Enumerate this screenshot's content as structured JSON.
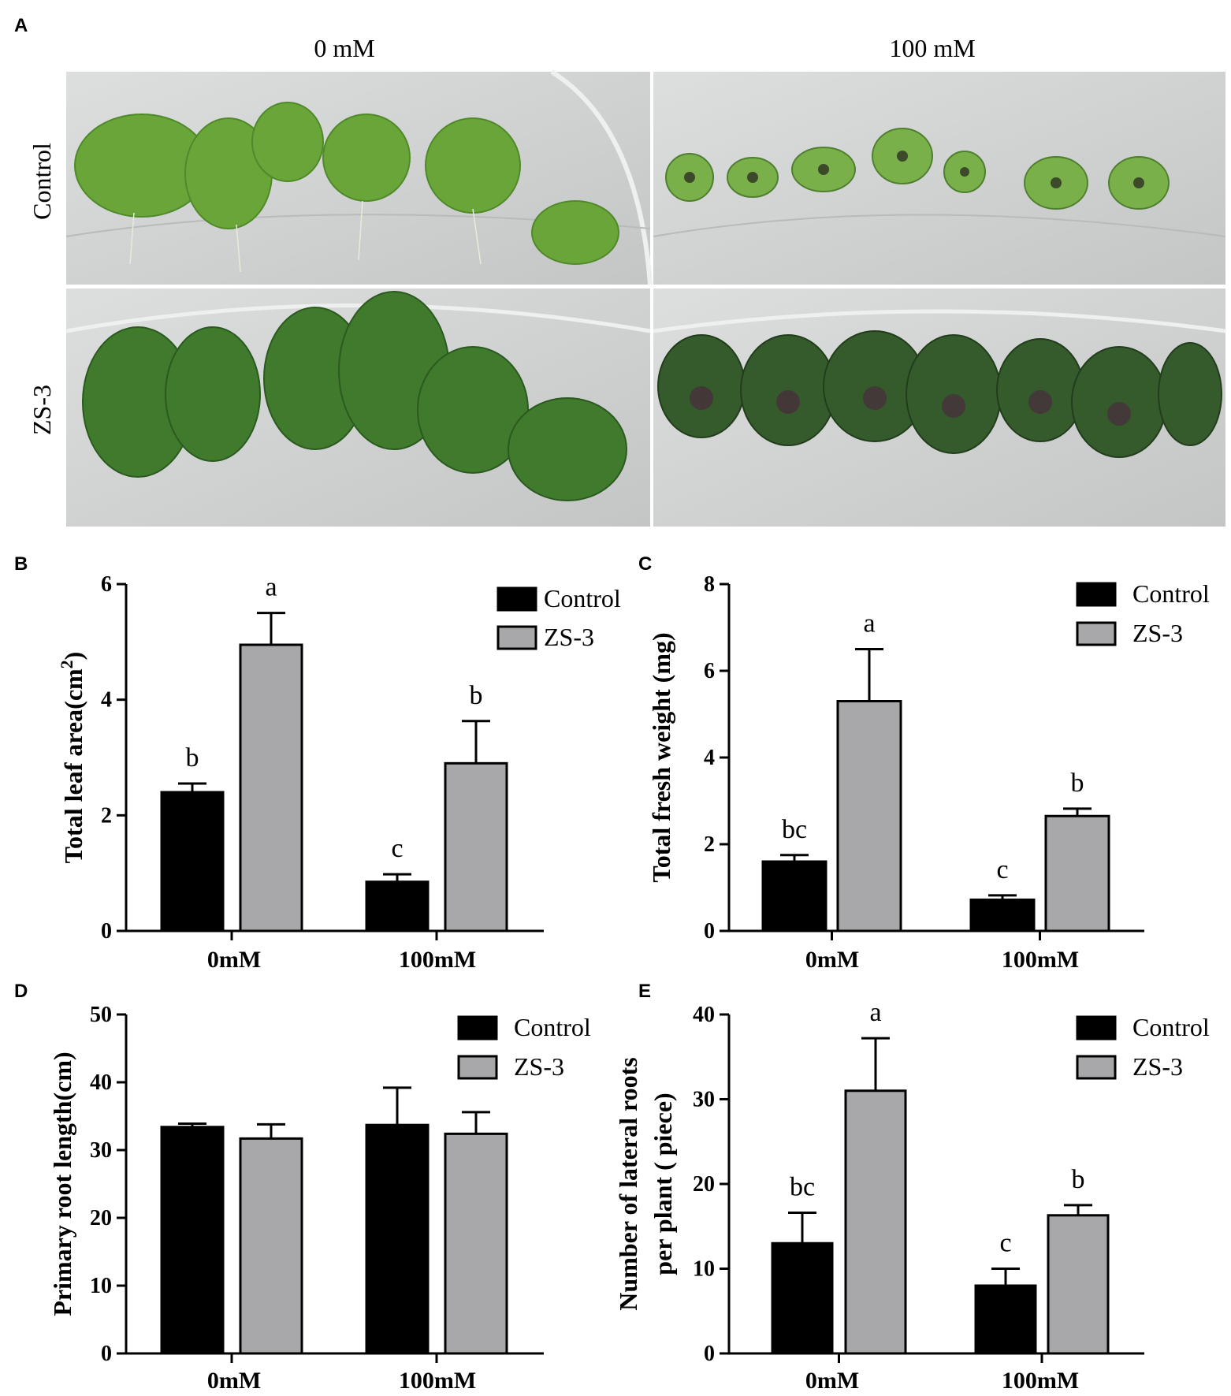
{
  "panel_a": {
    "letter": "A",
    "columns": [
      "0 mM",
      "100 mM"
    ],
    "rows": [
      "Control",
      "ZS-3"
    ],
    "colors": {
      "plate": "#c9cbcb",
      "plate_light": "#dcdedd",
      "plant_control": "#6aa53a",
      "plant_zs3": "#3d6d2a",
      "plant_stress_zs3": "#355a2c"
    }
  },
  "colors": {
    "control": "#000000",
    "zs3": "#a8a8ab",
    "axis": "#000000"
  },
  "chart_data": [
    {
      "letter": "B",
      "type": "bar",
      "categories": [
        "0mM",
        "100mM"
      ],
      "series": [
        {
          "name": "Control",
          "values": [
            2.4,
            0.85
          ],
          "errors": [
            0.15,
            0.13
          ]
        },
        {
          "name": "ZS-3",
          "values": [
            4.95,
            2.9
          ],
          "errors": [
            0.55,
            0.73
          ]
        }
      ],
      "significance": [
        [
          "b",
          "a"
        ],
        [
          "c",
          "b"
        ]
      ],
      "ylabel": "Total leaf area(cm",
      "ylabel_sup": "2",
      "ylabel_end": ")",
      "ylim": [
        0,
        6
      ],
      "yticks": [
        0,
        2,
        4,
        6
      ],
      "legend": "top-right"
    },
    {
      "letter": "C",
      "type": "bar",
      "categories": [
        "0mM",
        "100mM"
      ],
      "series": [
        {
          "name": "Control",
          "values": [
            1.6,
            0.72
          ],
          "errors": [
            0.15,
            0.1
          ]
        },
        {
          "name": "ZS-3",
          "values": [
            5.3,
            2.65
          ],
          "errors": [
            1.2,
            0.17
          ]
        }
      ],
      "significance": [
        [
          "bc",
          "a"
        ],
        [
          "c",
          "b"
        ]
      ],
      "ylabel": "Total fresh weight (mg)",
      "ylim": [
        0,
        8
      ],
      "yticks": [
        0,
        2,
        4,
        6,
        8
      ],
      "legend": "top-right"
    },
    {
      "letter": "D",
      "type": "bar",
      "categories": [
        "0mM",
        "100mM"
      ],
      "series": [
        {
          "name": "Control",
          "values": [
            33.4,
            33.7
          ],
          "errors": [
            0.5,
            5.5
          ]
        },
        {
          "name": "ZS-3",
          "values": [
            31.7,
            32.4
          ],
          "errors": [
            2.1,
            3.2
          ]
        }
      ],
      "significance": [],
      "ylabel": "Primary root length(cm)",
      "ylim": [
        0,
        50
      ],
      "yticks": [
        0,
        10,
        20,
        30,
        40,
        50
      ],
      "legend": "top-right"
    },
    {
      "letter": "E",
      "type": "bar",
      "categories": [
        "0mM",
        "100mM"
      ],
      "series": [
        {
          "name": "Control",
          "values": [
            13.0,
            8.0
          ],
          "errors": [
            3.6,
            2.0
          ]
        },
        {
          "name": "ZS-3",
          "values": [
            31.0,
            16.3
          ],
          "errors": [
            6.2,
            1.2
          ]
        }
      ],
      "significance": [
        [
          "bc",
          "a"
        ],
        [
          "c",
          "b"
        ]
      ],
      "ylabel": "Number of lateral roots",
      "ylabel2": "per plant ( piece)",
      "ylim": [
        0,
        40
      ],
      "yticks": [
        0,
        10,
        20,
        30,
        40
      ],
      "legend": "top-right"
    }
  ]
}
